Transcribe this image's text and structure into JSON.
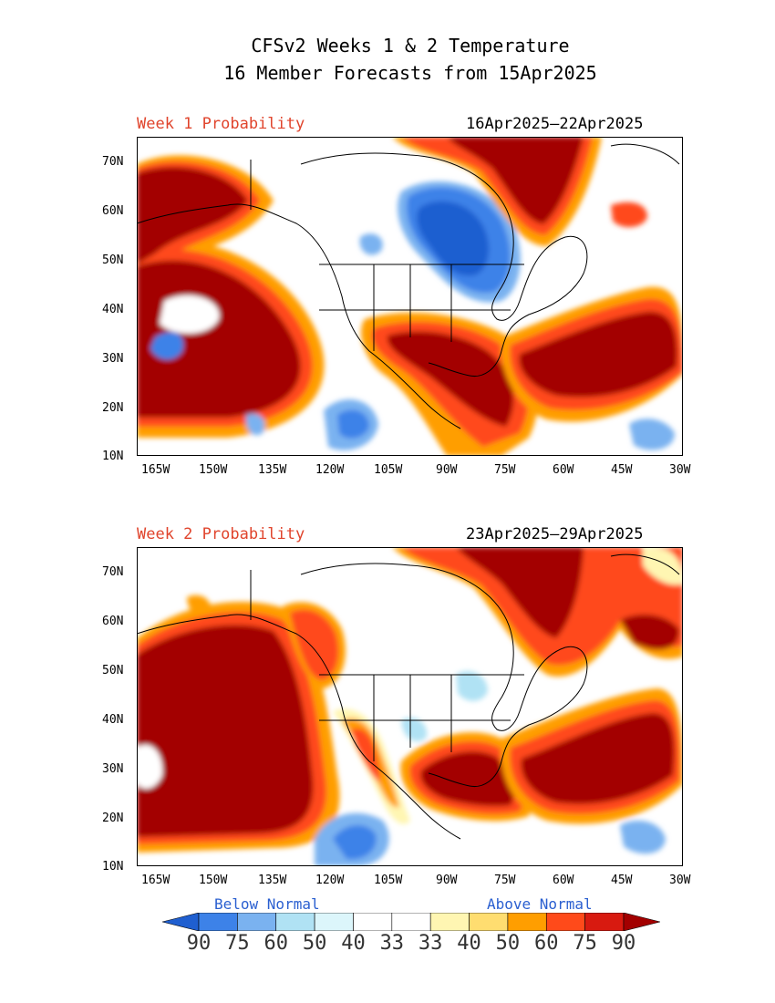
{
  "title_line1": "CFSv2 Weeks 1 & 2 Temperature",
  "title_line2": "16 Member Forecasts from 15Apr2025",
  "panels": [
    {
      "label": "Week 1 Probability",
      "date_range": "16Apr2025–22Apr2025",
      "regions": [
        {
          "name": "north-pacific-warm",
          "category": "above-90"
        },
        {
          "name": "gulf-southeast-warm",
          "category": "above-90"
        },
        {
          "name": "central-atlantic-warm",
          "category": "above-90"
        },
        {
          "name": "baffin-greenland-warm",
          "category": "above-90"
        },
        {
          "name": "hudson-bay-great-lakes-cold",
          "category": "below-75"
        },
        {
          "name": "subtropical-pacific-cold",
          "category": "below-60"
        },
        {
          "name": "mexico-pacific-cold",
          "category": "below-50"
        }
      ]
    },
    {
      "label": "Week 2 Probability",
      "date_range": "23Apr2025–29Apr2025",
      "regions": [
        {
          "name": "north-pacific-warm",
          "category": "above-90"
        },
        {
          "name": "gulf-southeast-warm",
          "category": "above-90"
        },
        {
          "name": "central-atlantic-warm",
          "category": "above-90"
        },
        {
          "name": "baffin-greenland-warm",
          "category": "above-90"
        },
        {
          "name": "western-canada-warm",
          "category": "above-75"
        },
        {
          "name": "mexico-pacific-cold",
          "category": "below-60"
        },
        {
          "name": "great-lakes-cold",
          "category": "below-40"
        }
      ]
    }
  ],
  "axes": {
    "y_labels": [
      "70N",
      "60N",
      "50N",
      "40N",
      "30N",
      "20N",
      "10N"
    ],
    "x_labels": [
      "165W",
      "150W",
      "135W",
      "120W",
      "105W",
      "90W",
      "75W",
      "60W",
      "45W",
      "30W"
    ],
    "lat_range": [
      10,
      75
    ],
    "lon_range": [
      -170,
      -30
    ]
  },
  "legend": {
    "below_label": "Below Normal",
    "above_label": "Above Normal",
    "values": [
      "90",
      "75",
      "60",
      "50",
      "40",
      "33",
      "33",
      "40",
      "50",
      "60",
      "75",
      "90"
    ],
    "colors": [
      "#1f5fd0",
      "#3d82e8",
      "#7ab2f0",
      "#b0e2f4",
      "#dcf6fb",
      "#ffffff",
      "#ffffff",
      "#fff6b2",
      "#ffdd70",
      "#ff9e00",
      "#ff4a1a",
      "#d81a10",
      "#a30000"
    ]
  }
}
